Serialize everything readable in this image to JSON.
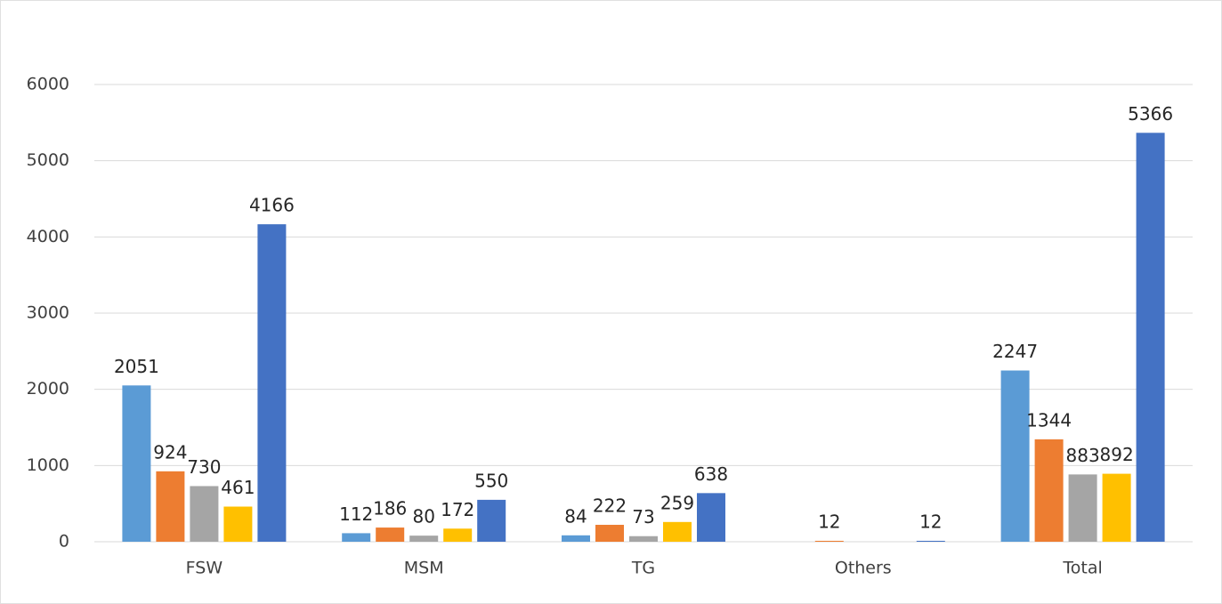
{
  "chart_data": {
    "type": "bar",
    "categories": [
      "FSW",
      "MSM",
      "TG",
      "Others",
      "Total"
    ],
    "series": [
      {
        "color": "#5b9bd5",
        "values": [
          2051,
          112,
          84,
          null,
          2247
        ]
      },
      {
        "color": "#ed7d31",
        "values": [
          924,
          186,
          222,
          12,
          1344
        ]
      },
      {
        "color": "#a5a5a5",
        "values": [
          730,
          80,
          73,
          null,
          883
        ]
      },
      {
        "color": "#ffc000",
        "values": [
          461,
          172,
          259,
          null,
          892
        ]
      },
      {
        "color": "#4472c4",
        "values": [
          4166,
          550,
          638,
          12,
          5366
        ]
      }
    ],
    "ylim": [
      0,
      6000
    ],
    "yticks": [
      0,
      1000,
      2000,
      3000,
      4000,
      5000,
      6000
    ],
    "grid": true
  }
}
